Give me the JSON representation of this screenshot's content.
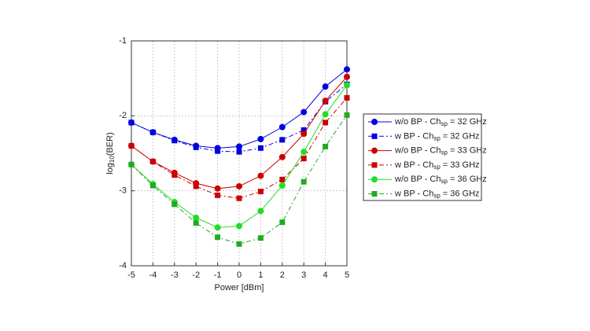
{
  "chart_data": {
    "type": "line",
    "xlabel": "Power [dBm]",
    "ylabel": {
      "text": "log",
      "subscript": "10",
      "suffix": "(BER)"
    },
    "x": [
      -5,
      -4,
      -3,
      -2,
      -1,
      0,
      1,
      2,
      3,
      4,
      5
    ],
    "xlim": [
      -5,
      5
    ],
    "xticks": [
      -5,
      -4,
      -3,
      -2,
      -1,
      0,
      1,
      2,
      3,
      4,
      5
    ],
    "ylim": [
      -4,
      -1
    ],
    "yticks": [
      -4,
      -3,
      -2,
      -1
    ],
    "grid": true,
    "legend_position": "right",
    "series": [
      {
        "name": "w/o BP - Ch",
        "name_subscript": "sp",
        "name_suffix": "= 32 GHz",
        "color": "#0000e0",
        "marker": "circle",
        "linestyle": "solid",
        "values": [
          -2.09,
          -2.22,
          -2.32,
          -2.4,
          -2.43,
          -2.41,
          -2.31,
          -2.15,
          -1.95,
          -1.61,
          -1.38
        ]
      },
      {
        "name": "w  BP - Ch",
        "name_subscript": "sp",
        "name_suffix": "= 32 GHz",
        "color": "#0000e0",
        "marker": "square",
        "linestyle": "dashdot",
        "values": [
          -2.09,
          -2.22,
          -2.33,
          -2.42,
          -2.47,
          -2.48,
          -2.43,
          -2.32,
          -2.19,
          -1.81,
          -1.58
        ]
      },
      {
        "name": "w/o BP - Ch",
        "name_subscript": "sp",
        "name_suffix": "= 33 GHz",
        "color": "#cc0000",
        "marker": "circle",
        "linestyle": "solid",
        "values": [
          -2.4,
          -2.61,
          -2.76,
          -2.9,
          -2.97,
          -2.94,
          -2.8,
          -2.55,
          -2.24,
          -1.8,
          -1.48
        ]
      },
      {
        "name": "w  BP - Ch",
        "name_subscript": "sp",
        "name_suffix": "= 33 GHz",
        "color": "#cc0000",
        "marker": "square",
        "linestyle": "dashdot",
        "values": [
          -2.4,
          -2.61,
          -2.79,
          -2.94,
          -3.06,
          -3.1,
          -3.01,
          -2.85,
          -2.57,
          -2.09,
          -1.76
        ]
      },
      {
        "name": "w/o BP - Ch",
        "name_subscript": "sp",
        "name_suffix": "= 36 GHz",
        "color": "#22dd22",
        "marker": "circle",
        "linestyle": "solid",
        "values": [
          -2.65,
          -2.91,
          -3.15,
          -3.36,
          -3.49,
          -3.47,
          -3.27,
          -2.93,
          -2.48,
          -1.98,
          -1.59
        ]
      },
      {
        "name": "w  BP - Ch",
        "name_subscript": "sp",
        "name_suffix": "= 36 GHz",
        "color": "#22aa22",
        "marker": "square",
        "linestyle": "dashdot",
        "values": [
          -2.65,
          -2.93,
          -3.18,
          -3.43,
          -3.62,
          -3.71,
          -3.63,
          -3.42,
          -2.88,
          -2.41,
          -1.99
        ]
      }
    ]
  }
}
